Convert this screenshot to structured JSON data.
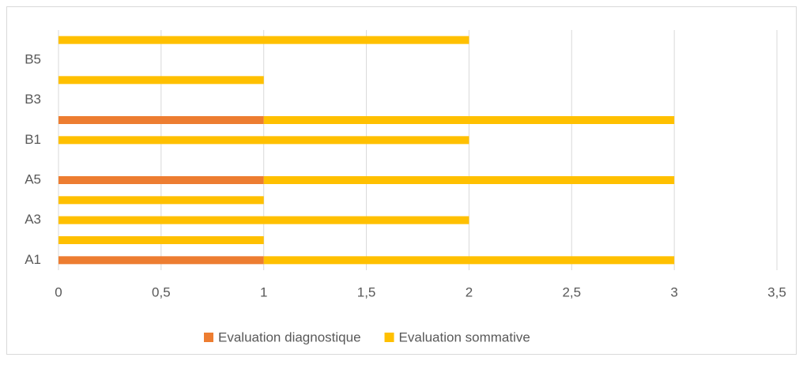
{
  "chart_data": {
    "type": "stacked_barh",
    "categories": [
      "A1",
      null,
      "A3",
      null,
      "A5",
      null,
      "B1",
      null,
      "B3",
      null,
      "B5",
      null
    ],
    "series": [
      {
        "name": "Evaluation diagnostique",
        "color": "#ed7d31",
        "values": [
          1,
          0,
          0,
          0,
          1,
          0,
          0,
          1,
          0,
          0,
          0,
          0
        ]
      },
      {
        "name": "Evaluation sommative",
        "color": "#ffc000",
        "values": [
          2,
          1,
          2,
          1,
          2,
          0,
          2,
          2,
          0,
          1,
          0,
          2
        ]
      }
    ],
    "xlim": [
      0,
      3.5
    ],
    "xticks": [
      0,
      {
        "value": 0.5,
        "label": "0,5"
      },
      1,
      {
        "value": 1.5,
        "label": "1,5"
      },
      2,
      {
        "value": 2.5,
        "label": "2,5"
      },
      3,
      {
        "value": 3.5,
        "label": "3,5"
      }
    ],
    "grid": true,
    "legend": "bottom"
  }
}
